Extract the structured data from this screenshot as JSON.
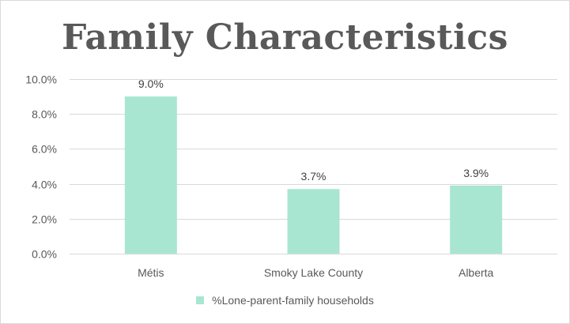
{
  "chart_data": {
    "type": "bar",
    "title": "Family Characteristics",
    "categories": [
      "Métis",
      "Smoky Lake County",
      "Alberta"
    ],
    "series": [
      {
        "name": "%Lone-parent-family households",
        "values": [
          9.0,
          3.7,
          3.9
        ],
        "data_labels": [
          "9.0%",
          "3.7%",
          "3.9%"
        ]
      }
    ],
    "xlabel": "",
    "ylabel": "",
    "ylim": [
      0,
      10
    ],
    "yticks": [
      0,
      2,
      4,
      6,
      8,
      10
    ],
    "ytick_labels": [
      "0.0%",
      "2.0%",
      "4.0%",
      "6.0%",
      "8.0%",
      "10.0%"
    ],
    "grid": true,
    "legend_position": "bottom",
    "colors": {
      "bar": "#a8e6d2",
      "grid": "#d9d9d9",
      "text": "#595959"
    }
  }
}
